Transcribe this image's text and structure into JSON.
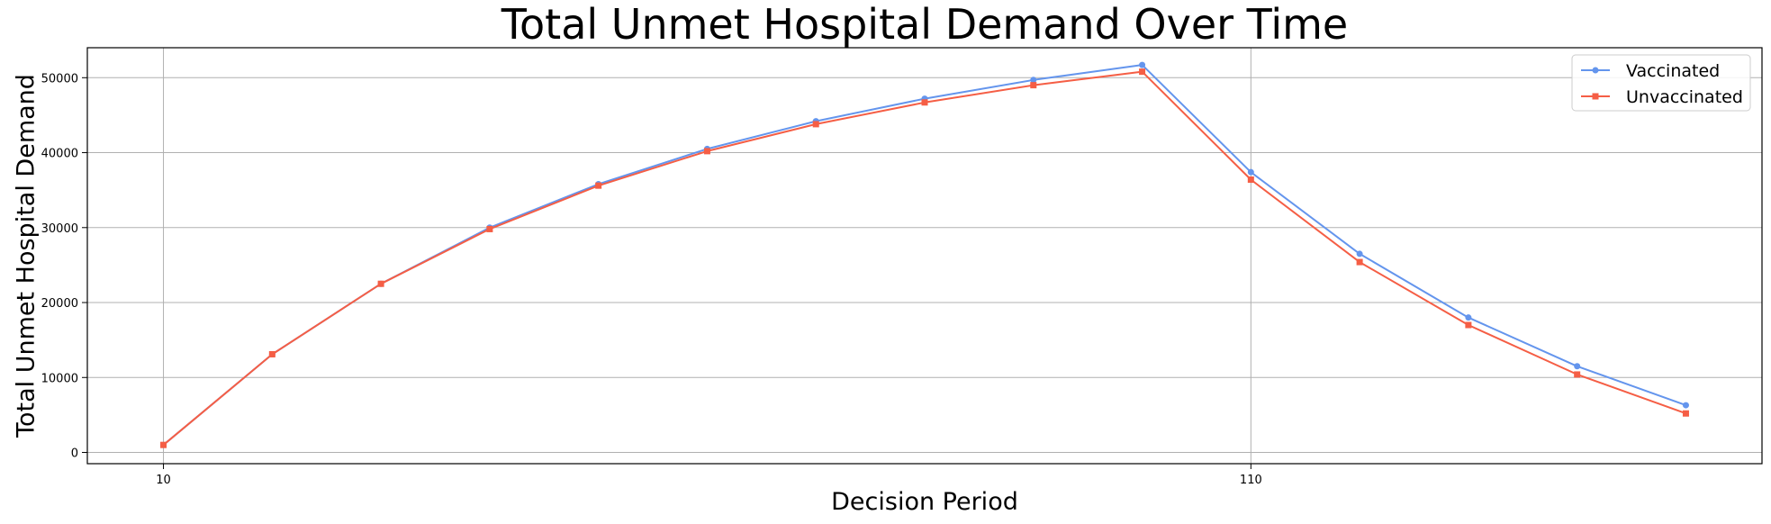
{
  "chart_data": {
    "type": "line",
    "title": "Total Unmet Hospital Demand Over Time",
    "xlabel": "Decision Period",
    "ylabel": "Total Unmet Hospital Demand",
    "xlim": [
      3,
      157
    ],
    "ylim": [
      -1500,
      54000
    ],
    "x": [
      10,
      20,
      30,
      40,
      50,
      60,
      70,
      80,
      90,
      100,
      110,
      120,
      130,
      140,
      150
    ],
    "xticks": [
      10,
      110
    ],
    "yticks": [
      0,
      10000,
      20000,
      30000,
      40000,
      50000
    ],
    "grid": true,
    "legend_position": "top-right",
    "series": [
      {
        "name": "Vaccinated",
        "color": "#6495ED",
        "marker": "circle",
        "values": [
          1000,
          13100,
          22500,
          30000,
          35800,
          40500,
          44200,
          47200,
          49700,
          51700,
          37400,
          26500,
          18000,
          11500,
          6300
        ]
      },
      {
        "name": "Unvaccinated",
        "color": "#F55E45",
        "marker": "square",
        "values": [
          1000,
          13100,
          22500,
          29800,
          35600,
          40200,
          43800,
          46700,
          49000,
          50800,
          36400,
          25400,
          17000,
          10400,
          5200
        ]
      }
    ]
  }
}
